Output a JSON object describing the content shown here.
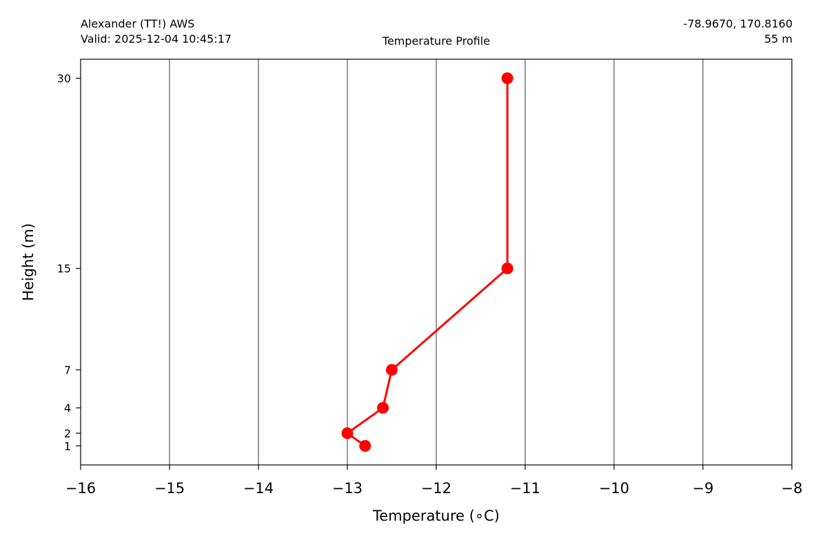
{
  "header": {
    "station": "Alexander (TT!) AWS",
    "valid": "Valid: 2025-12-04 10:45:17",
    "title": "Temperature Profile",
    "coords": "-78.9670, 170.8160",
    "elevation": "55 m"
  },
  "chart_data": {
    "type": "line",
    "title": "Temperature Profile",
    "xlabel": "Temperature (∘C)",
    "ylabel": "Height (m)",
    "xlim": [
      -16,
      -8
    ],
    "ylim": [
      -0.5,
      31.5
    ],
    "x_ticks": [
      -16,
      -15,
      -14,
      -13,
      -12,
      -11,
      -10,
      -9,
      -8
    ],
    "x_tick_labels": [
      "−16",
      "−15",
      "−14",
      "−13",
      "−12",
      "−11",
      "−10",
      "−9",
      "−8"
    ],
    "y_ticks": [
      1,
      2,
      4,
      7,
      15,
      30
    ],
    "y_tick_labels": [
      "1",
      "2",
      "4",
      "7",
      "15",
      "30"
    ],
    "grid": "vertical",
    "series": [
      {
        "color": "#ff0000",
        "points": [
          {
            "temp": -12.8,
            "height": 1
          },
          {
            "temp": -13.0,
            "height": 2
          },
          {
            "temp": -12.6,
            "height": 4
          },
          {
            "temp": -12.5,
            "height": 7
          },
          {
            "temp": -11.2,
            "height": 15
          },
          {
            "temp": -11.2,
            "height": 30
          }
        ]
      }
    ]
  }
}
